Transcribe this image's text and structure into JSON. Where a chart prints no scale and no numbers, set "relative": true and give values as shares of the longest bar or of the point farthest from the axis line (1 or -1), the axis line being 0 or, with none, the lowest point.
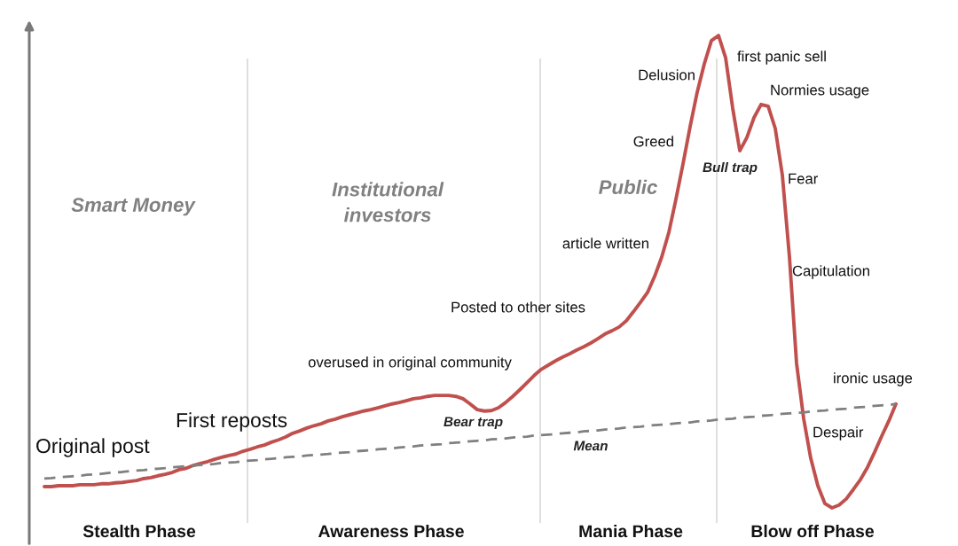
{
  "chart_data": {
    "type": "line",
    "relative": true,
    "categories": [
      null,
      null,
      null,
      null,
      null,
      null,
      null,
      null,
      null,
      null,
      null,
      null,
      null,
      null,
      null,
      null,
      null,
      null,
      null,
      null,
      null,
      null,
      null,
      null,
      null,
      null,
      null,
      null,
      null,
      null,
      null,
      null,
      null,
      null,
      null,
      null,
      null,
      null,
      null,
      null,
      null,
      null,
      null,
      null,
      null,
      null,
      null,
      null,
      null,
      null,
      null,
      null,
      null,
      null,
      null,
      null,
      null,
      null,
      null,
      null,
      null,
      null,
      null,
      null,
      null,
      null,
      null,
      null,
      null,
      null,
      null,
      null,
      null,
      null,
      null,
      null,
      null,
      null,
      null,
      null,
      null,
      null,
      null,
      null,
      null,
      null,
      null,
      null,
      null,
      null,
      null,
      null,
      null,
      null,
      null,
      null,
      null,
      null,
      null,
      null,
      null,
      null,
      null,
      null,
      null,
      null,
      null,
      null,
      null,
      null,
      null,
      null,
      null,
      null,
      null,
      null,
      null,
      null,
      null,
      null,
      null
    ],
    "series": [
      {
        "color": "#c0504d",
        "values": [
          0.045,
          0.045,
          0.047,
          0.047,
          0.047,
          0.049,
          0.049,
          0.049,
          0.051,
          0.051,
          0.053,
          0.054,
          0.056,
          0.058,
          0.062,
          0.064,
          0.068,
          0.071,
          0.075,
          0.081,
          0.084,
          0.09,
          0.094,
          0.098,
          0.103,
          0.107,
          0.111,
          0.114,
          0.12,
          0.124,
          0.129,
          0.133,
          0.139,
          0.144,
          0.15,
          0.158,
          0.163,
          0.169,
          0.174,
          0.178,
          0.184,
          0.188,
          0.193,
          0.197,
          0.201,
          0.205,
          0.208,
          0.212,
          0.216,
          0.22,
          0.223,
          0.227,
          0.231,
          0.233,
          0.236,
          0.238,
          0.238,
          0.238,
          0.236,
          0.231,
          0.22,
          0.208,
          0.205,
          0.206,
          0.212,
          0.223,
          0.236,
          0.25,
          0.265,
          0.28,
          0.293,
          0.302,
          0.311,
          0.319,
          0.326,
          0.334,
          0.341,
          0.349,
          0.358,
          0.368,
          0.375,
          0.383,
          0.396,
          0.415,
          0.435,
          0.456,
          0.49,
          0.531,
          0.583,
          0.653,
          0.728,
          0.807,
          0.88,
          0.94,
          0.989,
          1,
          0.953,
          0.846,
          0.756,
          0.784,
          0.826,
          0.854,
          0.85,
          0.803,
          0.704,
          0.531,
          0.306,
          0.189,
          0.105,
          0.047,
          0.009,
          0,
          0.006,
          0.019,
          0.039,
          0.06,
          0.086,
          0.118,
          0.152,
          0.184,
          0.22
        ]
      },
      {
        "name": "Mean",
        "color": "#808080",
        "line_style": "dashed",
        "values": [
          0.062,
          0.063,
          0.065,
          0.066,
          0.067,
          0.068,
          0.07,
          0.071,
          0.072,
          0.074,
          0.075,
          0.076,
          0.078,
          0.079,
          0.08,
          0.082,
          0.083,
          0.084,
          0.086,
          0.087,
          0.088,
          0.09,
          0.091,
          0.092,
          0.093,
          0.095,
          0.096,
          0.097,
          0.099,
          0.1,
          0.101,
          0.103,
          0.104,
          0.105,
          0.107,
          0.108,
          0.109,
          0.111,
          0.112,
          0.113,
          0.114,
          0.116,
          0.117,
          0.118,
          0.12,
          0.121,
          0.122,
          0.124,
          0.125,
          0.126,
          0.128,
          0.129,
          0.13,
          0.132,
          0.133,
          0.134,
          0.135,
          0.137,
          0.138,
          0.139,
          0.141,
          0.142,
          0.143,
          0.145,
          0.146,
          0.147,
          0.149,
          0.15,
          0.151,
          0.153,
          0.154,
          0.155,
          0.156,
          0.158,
          0.159,
          0.16,
          0.162,
          0.163,
          0.164,
          0.166,
          0.167,
          0.168,
          0.17,
          0.171,
          0.172,
          0.174,
          0.175,
          0.176,
          0.177,
          0.179,
          0.18,
          0.181,
          0.183,
          0.184,
          0.185,
          0.187,
          0.188,
          0.189,
          0.191,
          0.192,
          0.193,
          0.195,
          0.196,
          0.197,
          0.199,
          0.2,
          0.201,
          0.202,
          0.204,
          0.205,
          0.206,
          0.208,
          0.209,
          0.21,
          0.212,
          0.213,
          0.214,
          0.216,
          0.217,
          0.218,
          0.22
        ]
      }
    ],
    "annotations": [
      "Smart Money",
      "Institutional\ninvestors",
      "Public",
      "article written",
      "Posted to other sites",
      "overused in original community",
      "First reposts",
      "Original post",
      "Bear trap",
      "Delusion",
      "Greed",
      "first panic sell",
      "Normies usage",
      "Bull trap",
      "Fear",
      "Capitulation",
      "ironic usage",
      "Despair",
      "Stealth Phase",
      "Awareness Phase",
      "Mania Phase",
      "Blow off Phase"
    ]
  }
}
